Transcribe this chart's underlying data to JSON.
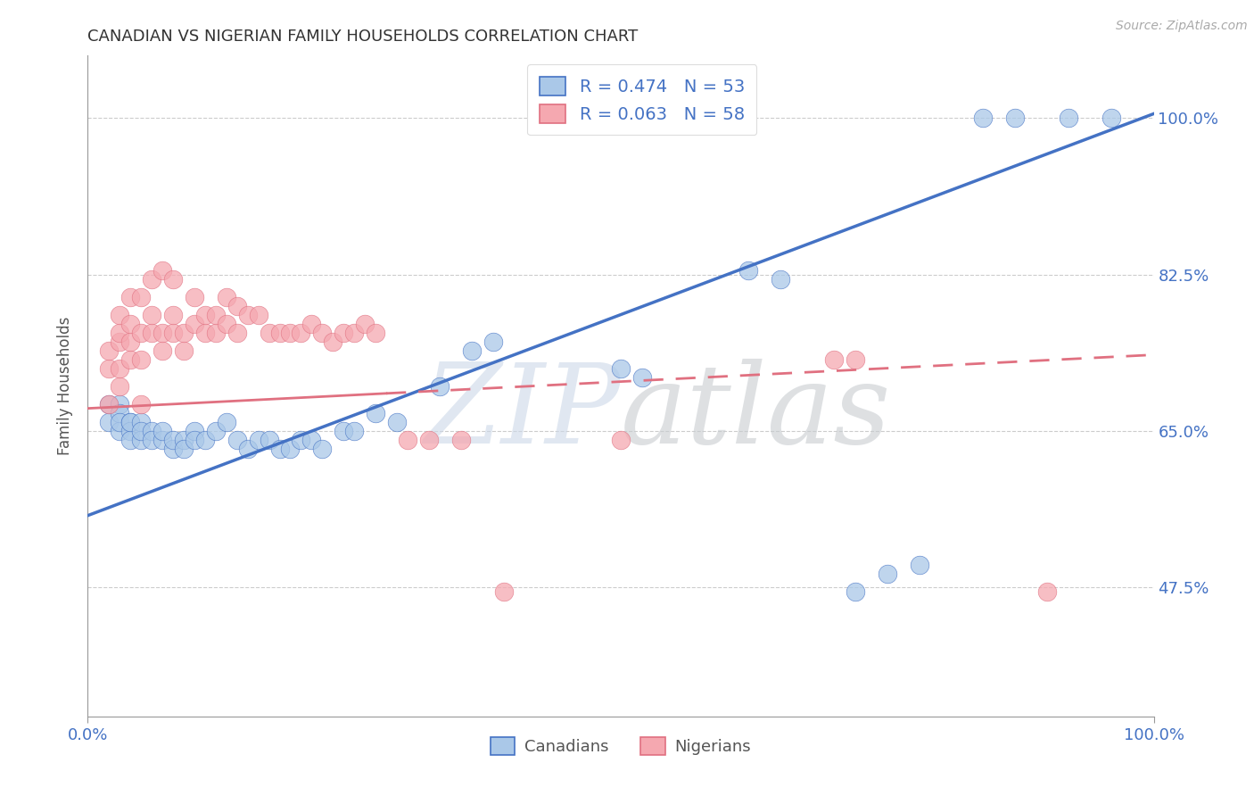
{
  "title": "CANADIAN VS NIGERIAN FAMILY HOUSEHOLDS CORRELATION CHART",
  "source": "Source: ZipAtlas.com",
  "ylabel": "Family Households",
  "xlim": [
    0,
    1
  ],
  "ylim": [
    0.33,
    1.07
  ],
  "yticks": [
    0.475,
    0.65,
    0.825,
    1.0
  ],
  "ytick_labels": [
    "47.5%",
    "65.0%",
    "82.5%",
    "100.0%"
  ],
  "canadian_R": 0.474,
  "canadian_N": 53,
  "nigerian_R": 0.063,
  "nigerian_N": 58,
  "canadian_color": "#aac8e8",
  "nigerian_color": "#f5a8b0",
  "canadian_line_color": "#4472c4",
  "nigerian_line_color": "#e07080",
  "legend_label_canadian": "Canadians",
  "legend_label_nigerian": "Nigerians",
  "canadian_x": [
    0.02,
    0.02,
    0.03,
    0.03,
    0.03,
    0.03,
    0.04,
    0.04,
    0.04,
    0.04,
    0.05,
    0.05,
    0.05,
    0.06,
    0.06,
    0.07,
    0.07,
    0.08,
    0.08,
    0.09,
    0.09,
    0.1,
    0.1,
    0.11,
    0.12,
    0.13,
    0.14,
    0.15,
    0.16,
    0.17,
    0.18,
    0.19,
    0.2,
    0.21,
    0.22,
    0.24,
    0.25,
    0.27,
    0.29,
    0.33,
    0.36,
    0.38,
    0.5,
    0.52,
    0.62,
    0.65,
    0.72,
    0.75,
    0.78,
    0.84,
    0.87,
    0.92,
    0.96
  ],
  "canadian_y": [
    0.68,
    0.66,
    0.68,
    0.65,
    0.67,
    0.66,
    0.66,
    0.65,
    0.64,
    0.66,
    0.66,
    0.64,
    0.65,
    0.65,
    0.64,
    0.64,
    0.65,
    0.63,
    0.64,
    0.64,
    0.63,
    0.65,
    0.64,
    0.64,
    0.65,
    0.66,
    0.64,
    0.63,
    0.64,
    0.64,
    0.63,
    0.63,
    0.64,
    0.64,
    0.63,
    0.65,
    0.65,
    0.67,
    0.66,
    0.7,
    0.74,
    0.75,
    0.72,
    0.71,
    0.83,
    0.82,
    0.47,
    0.49,
    0.5,
    1.0,
    1.0,
    1.0,
    1.0
  ],
  "nigerian_x": [
    0.02,
    0.02,
    0.02,
    0.03,
    0.03,
    0.03,
    0.03,
    0.03,
    0.04,
    0.04,
    0.04,
    0.04,
    0.05,
    0.05,
    0.05,
    0.05,
    0.06,
    0.06,
    0.06,
    0.07,
    0.07,
    0.07,
    0.08,
    0.08,
    0.08,
    0.09,
    0.09,
    0.1,
    0.1,
    0.11,
    0.11,
    0.12,
    0.12,
    0.13,
    0.13,
    0.14,
    0.14,
    0.15,
    0.16,
    0.17,
    0.18,
    0.19,
    0.2,
    0.21,
    0.22,
    0.23,
    0.24,
    0.25,
    0.26,
    0.27,
    0.3,
    0.32,
    0.35,
    0.39,
    0.5,
    0.7,
    0.72,
    0.9
  ],
  "nigerian_y": [
    0.68,
    0.72,
    0.74,
    0.7,
    0.72,
    0.75,
    0.76,
    0.78,
    0.73,
    0.75,
    0.77,
    0.8,
    0.68,
    0.73,
    0.76,
    0.8,
    0.76,
    0.78,
    0.82,
    0.74,
    0.76,
    0.83,
    0.76,
    0.78,
    0.82,
    0.74,
    0.76,
    0.77,
    0.8,
    0.76,
    0.78,
    0.76,
    0.78,
    0.77,
    0.8,
    0.76,
    0.79,
    0.78,
    0.78,
    0.76,
    0.76,
    0.76,
    0.76,
    0.77,
    0.76,
    0.75,
    0.76,
    0.76,
    0.77,
    0.76,
    0.64,
    0.64,
    0.64,
    0.47,
    0.64,
    0.73,
    0.73,
    0.47
  ],
  "canadian_trend": [
    0.0,
    1.0,
    0.555,
    1.005
  ],
  "nigerian_trend": [
    0.0,
    1.0,
    0.675,
    0.735
  ]
}
